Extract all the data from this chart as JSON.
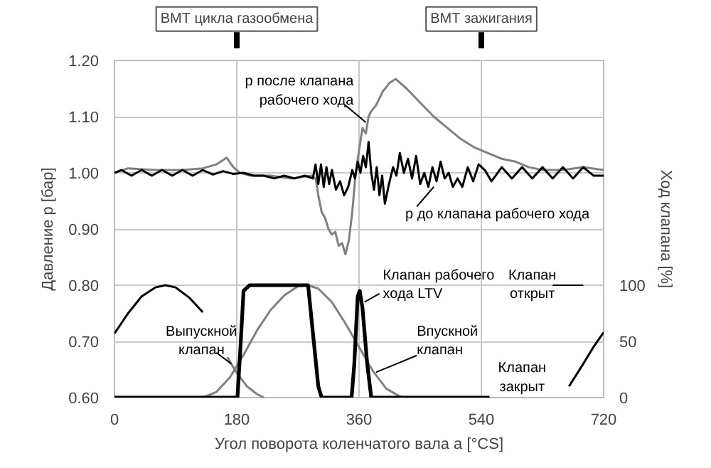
{
  "chart_data": {
    "type": "line",
    "xlabel": "Угол поворота коленчатого вала a [°CS]",
    "ylabel": "Давление p [бар]",
    "y2label": "Ход клапана [%]",
    "xlim": [
      0,
      720
    ],
    "xticks": [
      0,
      180,
      360,
      540,
      720
    ],
    "ylim": [
      0.6,
      1.2
    ],
    "yticks": [
      {
        "value": 0.6,
        "label": "0.60"
      },
      {
        "value": 0.7,
        "label": "0.70"
      },
      {
        "value": 0.8,
        "label": "0.80"
      },
      {
        "value": 0.9,
        "label": "0.90"
      },
      {
        "value": 1.0,
        "label": "1.00"
      },
      {
        "value": 1.1,
        "label": "1.10"
      },
      {
        "value": 1.2,
        "label": "1.20"
      }
    ],
    "y2lim": [
      0,
      300
    ],
    "y2ticks": [
      0,
      50,
      100
    ],
    "grid": true,
    "series": [
      {
        "color": "#808080",
        "x": [
          0,
          20,
          60,
          100,
          130,
          150,
          165,
          175,
          185,
          200,
          230,
          260,
          290,
          296,
          300,
          305,
          310,
          315,
          320,
          325,
          330,
          335,
          340,
          345,
          350,
          355,
          360,
          365,
          370,
          374,
          378,
          385,
          395,
          405,
          414,
          430,
          450,
          470,
          490,
          510,
          530,
          550,
          570,
          590,
          610,
          630,
          660,
          690,
          720
        ],
        "values": [
          1.0,
          1.008,
          1.005,
          1.005,
          1.008,
          1.015,
          1.027,
          1.01,
          1.0,
          0.995,
          0.995,
          0.99,
          0.995,
          0.99,
          0.96,
          0.93,
          0.92,
          0.9,
          0.89,
          0.895,
          0.87,
          0.875,
          0.855,
          0.88,
          0.93,
          1.0,
          1.04,
          1.08,
          1.07,
          1.1,
          1.11,
          1.12,
          1.145,
          1.16,
          1.167,
          1.15,
          1.125,
          1.1,
          1.08,
          1.06,
          1.045,
          1.035,
          1.025,
          1.02,
          1.01,
          1.005,
          1.005,
          1.01,
          1.005
        ]
      },
      {
        "color": "#000000",
        "x": [
          0,
          10,
          25,
          40,
          55,
          70,
          85,
          100,
          115,
          130,
          145,
          160,
          175,
          190,
          205,
          220,
          235,
          250,
          265,
          280,
          292,
          296,
          300,
          304,
          308,
          312,
          316,
          320,
          326,
          332,
          338,
          344,
          350,
          354,
          358,
          362,
          366,
          370,
          374,
          378,
          382,
          386,
          390,
          394,
          398,
          404,
          410,
          415,
          420,
          426,
          432,
          438,
          444,
          450,
          456,
          462,
          468,
          474,
          480,
          486,
          492,
          498,
          505,
          512,
          520,
          528,
          536,
          545,
          555,
          570,
          585,
          600,
          615,
          630,
          645,
          660,
          675,
          690,
          705,
          720
        ],
        "values": [
          1.0,
          1.005,
          0.995,
          1.005,
          0.995,
          1.005,
          0.995,
          1.005,
          0.995,
          1.005,
          0.997,
          1.003,
          0.998,
          1.0,
          0.995,
          0.995,
          0.99,
          0.995,
          0.99,
          0.995,
          0.99,
          1.015,
          0.98,
          1.015,
          0.975,
          1.01,
          0.98,
          1.005,
          0.97,
          0.985,
          0.96,
          0.975,
          1.005,
          0.99,
          1.02,
          1.0,
          1.03,
          1.01,
          1.055,
          1.0,
          0.97,
          1.01,
          0.96,
          0.995,
          0.945,
          0.98,
          1.01,
          0.995,
          1.035,
          1.0,
          1.025,
          0.99,
          1.03,
          0.98,
          1.0,
          0.975,
          1.01,
          0.985,
          1.02,
          0.99,
          1.0,
          0.975,
          0.99,
          0.975,
          1.01,
          0.985,
          1.015,
          1.005,
          0.985,
          1.01,
          0.99,
          1.01,
          0.99,
          1.01,
          0.99,
          1.01,
          0.99,
          1.01,
          0.995,
          0.995
        ]
      },
      {
        "color": "#808080",
        "axis": "y2",
        "x": [
          130,
          150,
          170,
          190,
          210,
          230,
          250,
          270,
          285,
          300,
          320,
          340,
          360,
          380,
          400,
          420,
          430
        ],
        "values": [
          0,
          5,
          18,
          38,
          60,
          78,
          91,
          99,
          100,
          97,
          85,
          66,
          45,
          24,
          8,
          1,
          0
        ]
      },
      {
        "color": "#808080",
        "axis": "y2",
        "x": [
          166,
          180,
          195,
          210,
          220
        ],
        "values": [
          36,
          22,
          10,
          3,
          0
        ]
      },
      {
        "color": "#000000",
        "axis": "y2",
        "x": [
          0,
          20,
          40,
          60,
          75,
          90,
          110,
          130
        ],
        "values": [
          57,
          75,
          90,
          98,
          100,
          98,
          89,
          76
        ]
      },
      {
        "color": "#000000",
        "axis": "y2",
        "x": [
          669,
          690,
          705,
          720
        ],
        "values": [
          10,
          30,
          45,
          58
        ]
      },
      {
        "color": "#000000",
        "axis": "y2",
        "x": [
          0,
          181,
          185,
          190,
          199,
          285,
          290,
          300,
          305,
          349,
          353,
          358,
          361,
          365,
          372,
          378,
          552
        ],
        "values": [
          0,
          0,
          40,
          95,
          100,
          100,
          70,
          10,
          0,
          0,
          30,
          90,
          95,
          80,
          30,
          0,
          0
        ]
      }
    ],
    "ref_lines": [
      {
        "axis": "x",
        "value": 180,
        "label": "ВМТ цикла газообмена"
      },
      {
        "axis": "x",
        "value": 540,
        "label": "ВМТ зажигания"
      }
    ],
    "annotations": [
      {
        "text": "p после клапана\nрабочего хода",
        "x": 370,
        "y": 1.09
      },
      {
        "text": "p до клапана рабочего хода",
        "x": 470,
        "y": 0.975
      },
      {
        "text": "Клапан рабочего\nхода LTV",
        "x": 368,
        "y": 0.77
      },
      {
        "text": "Выпускной\nклапан",
        "x": 172,
        "y": 0.66
      },
      {
        "text": "Впускной\nклапан",
        "x": 385,
        "y": 0.645
      },
      "Клапан\nоткрыт",
      "Клапан\nзакрыт"
    ]
  }
}
